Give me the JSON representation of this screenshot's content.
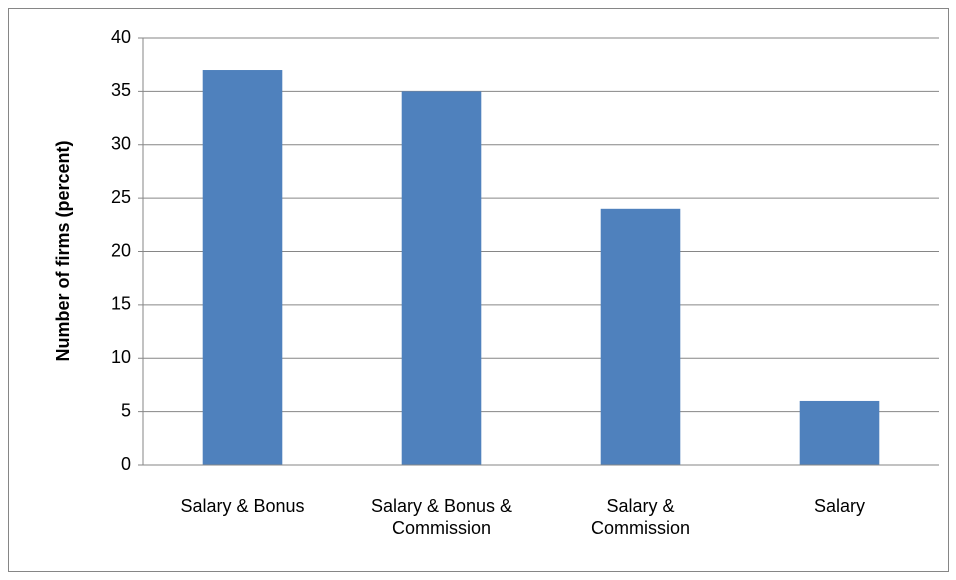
{
  "chart_data": {
    "type": "bar",
    "y_label": "Number of firms (percent)",
    "categories": [
      "Salary & Bonus",
      "Salary & Bonus & Commission",
      "Salary & Commission",
      "Salary"
    ],
    "values": [
      37,
      35,
      24,
      6
    ],
    "color": "#4f81bd",
    "ylim": [
      0,
      40
    ],
    "yticks": [
      0,
      5,
      10,
      15,
      20,
      25,
      30,
      35,
      40
    ],
    "grid": true
  }
}
